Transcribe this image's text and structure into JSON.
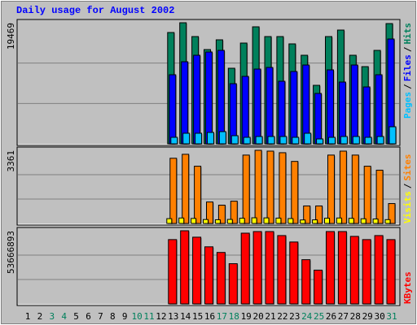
{
  "title": "Daily usage for August 2002",
  "chart_data": [
    {
      "type": "bar",
      "legend_separator": "/",
      "ylim": [
        0,
        19469
      ],
      "yticks": [
        19469
      ],
      "series": [
        {
          "name": "Hits",
          "color": "#00805c",
          "values": [
            null,
            null,
            null,
            null,
            null,
            null,
            null,
            null,
            null,
            null,
            null,
            null,
            17901,
            19469,
            17248,
            15157,
            16725,
            12152,
            16202,
            18815,
            17248,
            17248,
            16071,
            14242,
            9408,
            17248,
            18293,
            14242,
            12413,
            15026,
            19338
          ]
        },
        {
          "name": "Files",
          "color": "#0000ff",
          "values": [
            null,
            null,
            null,
            null,
            null,
            null,
            null,
            null,
            null,
            null,
            null,
            null,
            11106,
            13197,
            14242,
            14765,
            15026,
            9669,
            10845,
            12021,
            12282,
            10061,
            11629,
            12674,
            8101,
            11890,
            9931,
            12674,
            9147,
            11106,
            16855
          ]
        },
        {
          "name": "Pages",
          "color": "#00c0ff",
          "values": [
            null,
            null,
            null,
            null,
            null,
            null,
            null,
            null,
            null,
            null,
            null,
            null,
            1045,
            1699,
            1699,
            1829,
            1960,
            1307,
            1045,
            1176,
            1176,
            1176,
            1045,
            1699,
            784,
            1045,
            1176,
            1176,
            1045,
            1176,
            2744
          ]
        }
      ]
    },
    {
      "type": "bar",
      "legend_separator": "/",
      "ylim": [
        0,
        3361
      ],
      "yticks": [
        3361
      ],
      "series": [
        {
          "name": "Sites",
          "color": "#ff8000",
          "values": [
            null,
            null,
            null,
            null,
            null,
            null,
            null,
            null,
            null,
            null,
            null,
            null,
            2996,
            3178,
            2630,
            986,
            840,
            1023,
            3142,
            3361,
            3324,
            3251,
            2850,
            804,
            804,
            3142,
            3324,
            3142,
            2630,
            2448,
            913
          ]
        },
        {
          "name": "Visits",
          "color": "#ffff00",
          "values": [
            null,
            null,
            null,
            null,
            null,
            null,
            null,
            null,
            null,
            null,
            null,
            null,
            220,
            250,
            230,
            180,
            170,
            185,
            240,
            260,
            255,
            245,
            225,
            160,
            165,
            240,
            250,
            235,
            215,
            205,
            175
          ]
        }
      ]
    },
    {
      "type": "bar",
      "ylim": [
        0,
        53666893
      ],
      "yticks": [
        53666893
      ],
      "series": [
        {
          "name": "KBytes",
          "color": "#ff0000",
          "values": [
            null,
            null,
            null,
            null,
            null,
            null,
            null,
            null,
            null,
            null,
            null,
            null,
            47179686,
            53666893,
            48948594,
            41871686,
            37743486,
            29487304,
            51897657,
            53077147,
            53077147,
            50128422,
            45410462,
            32436034,
            24769335,
            53077147,
            53077147,
            49538670,
            47179686,
            50128422,
            47179686
          ]
        }
      ],
      "categories": [
        "1",
        "2",
        "3",
        "4",
        "5",
        "6",
        "7",
        "8",
        "9",
        "10",
        "11",
        "12",
        "13",
        "14",
        "15",
        "16",
        "17",
        "18",
        "19",
        "20",
        "21",
        "22",
        "23",
        "24",
        "25",
        "26",
        "27",
        "28",
        "29",
        "30",
        "31"
      ],
      "category_colors": [
        "#000000",
        "#000000",
        "#00805c",
        "#00805c",
        "#000000",
        "#000000",
        "#000000",
        "#000000",
        "#000000",
        "#00805c",
        "#00805c",
        "#000000",
        "#000000",
        "#000000",
        "#000000",
        "#000000",
        "#00805c",
        "#00805c",
        "#000000",
        "#000000",
        "#000000",
        "#000000",
        "#000000",
        "#00805c",
        "#00805c",
        "#000000",
        "#000000",
        "#000000",
        "#000000",
        "#000000",
        "#00805c"
      ]
    }
  ]
}
